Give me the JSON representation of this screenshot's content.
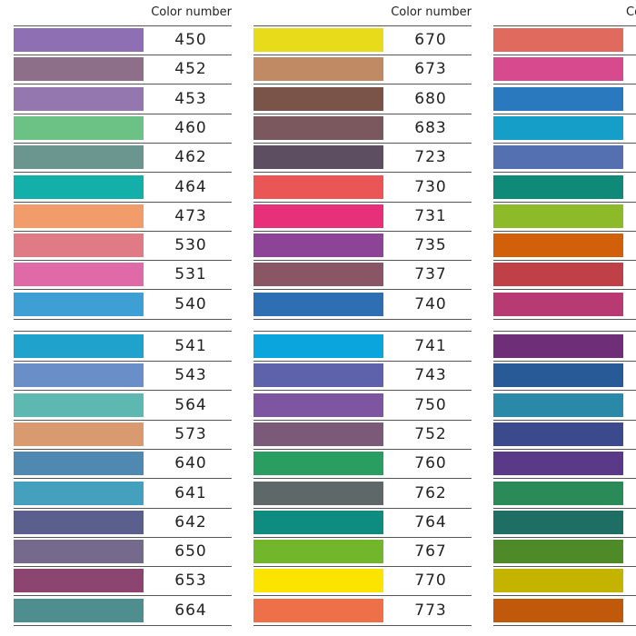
{
  "columns": [
    {
      "header": "Color number",
      "groups": [
        [
          {
            "number": "450",
            "color": "#8e6fb4"
          },
          {
            "number": "452",
            "color": "#8d6f8a"
          },
          {
            "number": "453",
            "color": "#9577b0"
          },
          {
            "number": "460",
            "color": "#6cc184"
          },
          {
            "number": "462",
            "color": "#6b9690"
          },
          {
            "number": "464",
            "color": "#12b0a8"
          },
          {
            "number": "473",
            "color": "#f39c6b"
          },
          {
            "number": "530",
            "color": "#e07a85"
          },
          {
            "number": "531",
            "color": "#e06aa8"
          },
          {
            "number": "540",
            "color": "#3d9fd3"
          }
        ],
        [
          {
            "number": "541",
            "color": "#1fa3cc"
          },
          {
            "number": "543",
            "color": "#6a8fc8"
          },
          {
            "number": "564",
            "color": "#5cb8b0"
          },
          {
            "number": "573",
            "color": "#d99a70"
          },
          {
            "number": "640",
            "color": "#4f88b0"
          },
          {
            "number": "641",
            "color": "#45a0be"
          },
          {
            "number": "642",
            "color": "#5a5f8e"
          },
          {
            "number": "650",
            "color": "#766a8c"
          },
          {
            "number": "653",
            "color": "#8c4570"
          },
          {
            "number": "664",
            "color": "#4e8e8e"
          }
        ]
      ]
    },
    {
      "header": "Color number",
      "groups": [
        [
          {
            "number": "670",
            "color": "#e8db1a"
          },
          {
            "number": "673",
            "color": "#c08a65"
          },
          {
            "number": "680",
            "color": "#7a5448"
          },
          {
            "number": "683",
            "color": "#7a585e"
          },
          {
            "number": "723",
            "color": "#5e4e62"
          },
          {
            "number": "730",
            "color": "#ea5656"
          },
          {
            "number": "731",
            "color": "#e8307a"
          },
          {
            "number": "735",
            "color": "#8e4496"
          },
          {
            "number": "737",
            "color": "#8a5666"
          },
          {
            "number": "740",
            "color": "#2e6fb4"
          }
        ],
        [
          {
            "number": "741",
            "color": "#0aa5dd"
          },
          {
            "number": "743",
            "color": "#5e62aa"
          },
          {
            "number": "750",
            "color": "#7d55a0"
          },
          {
            "number": "752",
            "color": "#7a5a78"
          },
          {
            "number": "760",
            "color": "#2a9e60"
          },
          {
            "number": "762",
            "color": "#5e6868"
          },
          {
            "number": "764",
            "color": "#0e8c80"
          },
          {
            "number": "767",
            "color": "#72b62c"
          },
          {
            "number": "770",
            "color": "#fbe400"
          },
          {
            "number": "773",
            "color": "#ee7048"
          }
        ]
      ]
    },
    {
      "header": "Color number",
      "groups": [
        [
          {
            "color": "#e06a5e"
          },
          {
            "color": "#d84a8e"
          },
          {
            "color": "#2a78be"
          },
          {
            "color": "#159ec8"
          },
          {
            "color": "#5570b0"
          },
          {
            "color": "#108a78"
          },
          {
            "color": "#8cba28"
          },
          {
            "color": "#d2600a"
          },
          {
            "color": "#c04048"
          },
          {
            "color": "#b83a72"
          }
        ],
        [
          {
            "color": "#6e2e78"
          },
          {
            "color": "#285a98"
          },
          {
            "color": "#2a88a8"
          },
          {
            "color": "#3a4a8c"
          },
          {
            "color": "#5a3a88"
          },
          {
            "color": "#2a8a58"
          },
          {
            "color": "#1e6e64"
          },
          {
            "color": "#4e8a28"
          },
          {
            "color": "#c4b400"
          },
          {
            "color": "#c05a0a"
          }
        ]
      ]
    }
  ]
}
